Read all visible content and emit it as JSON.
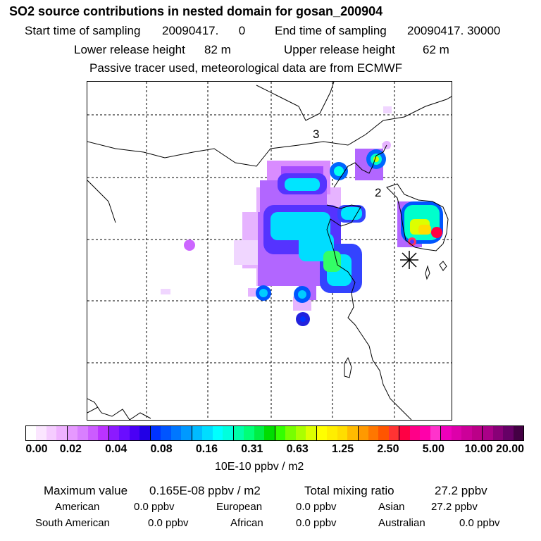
{
  "header": {
    "title": "SO2 source contributions in nested domain for gosan_200904",
    "start_label": "Start time of sampling",
    "start_value": "20090417.      0",
    "end_label": "End time of sampling",
    "end_value": "20090417. 30000",
    "lower_label": "Lower release height",
    "lower_value": "82 m",
    "upper_label": "Upper release height",
    "upper_value": "62 m",
    "tracer_note": "Passive tracer used, meteorological data are from ECMWF"
  },
  "map": {
    "region_labels": [
      "3",
      "2"
    ],
    "receptor_marker": "asterisk"
  },
  "colorbar": {
    "ticks": [
      "0.00",
      "0.02",
      "0.04",
      "0.08",
      "0.16",
      "0.31",
      "0.63",
      "1.25",
      "2.50",
      "5.00",
      "10.00",
      "20.00"
    ],
    "colors": [
      "#ffffff",
      "#fbe6ff",
      "#f5ccff",
      "#efb2ff",
      "#e699ff",
      "#d97fff",
      "#cc5cff",
      "#bb33ff",
      "#8c1aff",
      "#6a0dff",
      "#4a00f5",
      "#2200e6",
      "#0033ff",
      "#0055ff",
      "#0077ff",
      "#0099ff",
      "#00bbff",
      "#00ddff",
      "#00ffff",
      "#00ffdd",
      "#00ffaa",
      "#00ff77",
      "#00ee44",
      "#00dd00",
      "#33ff00",
      "#77ff00",
      "#aaff00",
      "#ddff00",
      "#ffff00",
      "#ffee00",
      "#ffdd00",
      "#ffbb00",
      "#ff9900",
      "#ff7700",
      "#ff5500",
      "#ff3333",
      "#ff0044",
      "#ff0088",
      "#ff00aa",
      "#ff33cc",
      "#ee00bb",
      "#dd00aa",
      "#cc0099",
      "#bb0088",
      "#aa0088",
      "#880077",
      "#660066",
      "#440044"
    ],
    "units": "10E-10 ppbv / m2"
  },
  "stats": {
    "max_label": "Maximum value",
    "max_value": "0.165E-08 ppbv / m2",
    "total_label": "Total mixing ratio",
    "total_value": "27.2 ppbv",
    "regions": [
      {
        "name": "American",
        "value": "0.0 ppbv"
      },
      {
        "name": "European",
        "value": "0.0 ppbv"
      },
      {
        "name": "Asian",
        "value": "27.2 ppbv"
      },
      {
        "name": "South American",
        "value": "0.0 ppbv"
      },
      {
        "name": "African",
        "value": "0.0 ppbv"
      },
      {
        "name": "Australian",
        "value": "0.0 ppbv"
      }
    ]
  }
}
